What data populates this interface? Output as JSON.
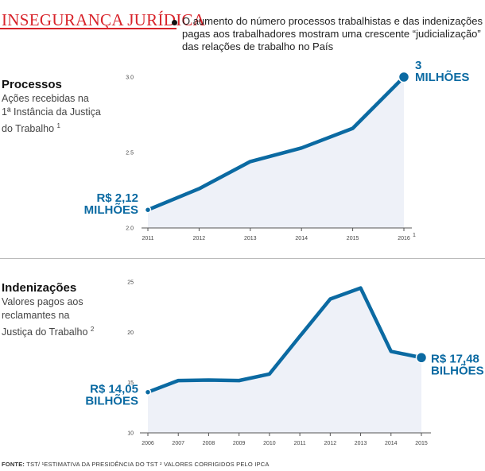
{
  "header": {
    "title": "INSEGURANÇA JURÍDICA",
    "intro_lines": [
      "O aumento do número processos trabalhistas e das indenizações",
      "pagas aos trabalhadores mostram uma crescente “judicialização”",
      "das relações de trabalho no País"
    ]
  },
  "sections": {
    "processos": {
      "title": "Processos",
      "subtitle_lines": [
        "Ações recebidas na",
        "1ª Instância da Justiça",
        "do Trabalho"
      ],
      "footnote": "1"
    },
    "indenizacoes": {
      "title": "Indenizações",
      "subtitle_lines": [
        "Valores pagos aos",
        "reclamantes na",
        "Justiça do Trabalho"
      ],
      "footnote": "2"
    }
  },
  "footer": {
    "label": "FONTE:",
    "text": "TST/ ¹ESTIMATIVA DA PRESIDÊNCIA DO TST   ² VALORES CORRIGIDOS PELO IPCA"
  },
  "colors": {
    "line": "#0b6aa2",
    "area": "#eef1f8",
    "title": "#d8232a"
  },
  "chart_data": [
    {
      "type": "area",
      "title": "Processos",
      "x": [
        "2011",
        "2012",
        "2013",
        "2014",
        "2015",
        "2016"
      ],
      "x_footnote": {
        "2016": "1"
      },
      "values": [
        2.12,
        2.26,
        2.44,
        2.53,
        2.66,
        3.0
      ],
      "ylim": [
        2.0,
        3.0
      ],
      "yticks": [
        "2.0",
        "2.5",
        "3.0"
      ],
      "annotations": [
        {
          "x": "2011",
          "lines": [
            "R$ 2,12",
            "MILHÕES"
          ]
        },
        {
          "x": "2016",
          "lines": [
            "3",
            "MILHÕES"
          ]
        }
      ]
    },
    {
      "type": "area",
      "title": "Indenizações",
      "x": [
        "2006",
        "2007",
        "2008",
        "2009",
        "2010",
        "2011",
        "2012",
        "2013",
        "2014",
        "2015"
      ],
      "values": [
        14.05,
        15.2,
        15.25,
        15.2,
        15.85,
        19.6,
        23.3,
        24.4,
        18.1,
        17.48
      ],
      "ylim": [
        10,
        25
      ],
      "yticks": [
        "10",
        "15",
        "20",
        "25"
      ],
      "annotations": [
        {
          "x": "2006",
          "lines": [
            "R$ 14,05",
            "BILHÕES"
          ]
        },
        {
          "x": "2015",
          "lines": [
            "R$ 17,48",
            "BILHÕES"
          ]
        }
      ]
    }
  ]
}
